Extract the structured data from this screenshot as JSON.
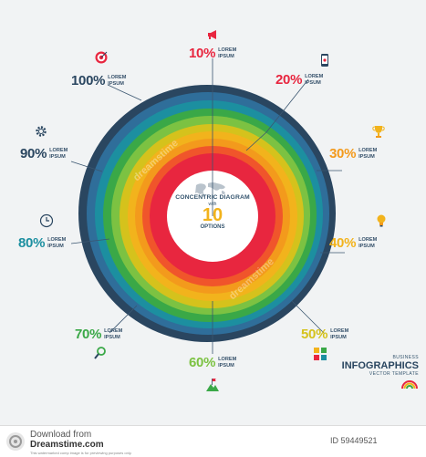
{
  "center": {
    "title": "CONCENTRIC DIAGRAM",
    "with": "with",
    "count": "10",
    "options": "OPTIONS"
  },
  "items": [
    {
      "pct": "10%",
      "line1": "LOREM",
      "line2": "IPSUM",
      "color": "#e8263f",
      "icon": "megaphone-icon"
    },
    {
      "pct": "20%",
      "line1": "LOREM",
      "line2": "IPSUM",
      "color": "#e8263f",
      "icon": "smartphone-icon"
    },
    {
      "pct": "30%",
      "line1": "LOREM",
      "line2": "IPSUM",
      "color": "#f39a1c",
      "icon": "trophy-icon"
    },
    {
      "pct": "40%",
      "line1": "LOREM",
      "line2": "IPSUM",
      "color": "#f2b31c",
      "icon": "lightbulb-icon"
    },
    {
      "pct": "50%",
      "line1": "LOREM",
      "line2": "IPSUM",
      "color": "#d5c21c",
      "icon": "puzzle-icon"
    },
    {
      "pct": "60%",
      "line1": "LOREM",
      "line2": "IPSUM",
      "color": "#7cc242",
      "icon": "mountain-flag-icon"
    },
    {
      "pct": "70%",
      "line1": "LOREM",
      "line2": "IPSUM",
      "color": "#3aa847",
      "icon": "magnifier-icon"
    },
    {
      "pct": "80%",
      "line1": "LOREM",
      "line2": "IPSUM",
      "color": "#1c8fa0",
      "icon": "clock-icon"
    },
    {
      "pct": "90%",
      "line1": "LOREM",
      "line2": "IPSUM",
      "color": "#2a4660",
      "icon": "gear-icon"
    },
    {
      "pct": "100%",
      "line1": "LOREM",
      "line2": "IPSUM",
      "color": "#2a4660",
      "icon": "target-icon"
    }
  ],
  "ring_colors": [
    "#e8263f",
    "#f0552b",
    "#f39a1c",
    "#f2b31c",
    "#d5c21c",
    "#7cc242",
    "#3aa847",
    "#1c8fa0",
    "#2f6e9a",
    "#2a4660"
  ],
  "brand": {
    "business": "BUSINESS",
    "main": "INFOGRAPHICS",
    "sub": "VECTOR TEMPLATE"
  },
  "footer": {
    "line1": "Download from",
    "line2": "Dreamstime.com",
    "line3": "This watermarked comp image is for previewing purposes only.",
    "id": "ID 59449521"
  },
  "watermark": "dreamstime"
}
